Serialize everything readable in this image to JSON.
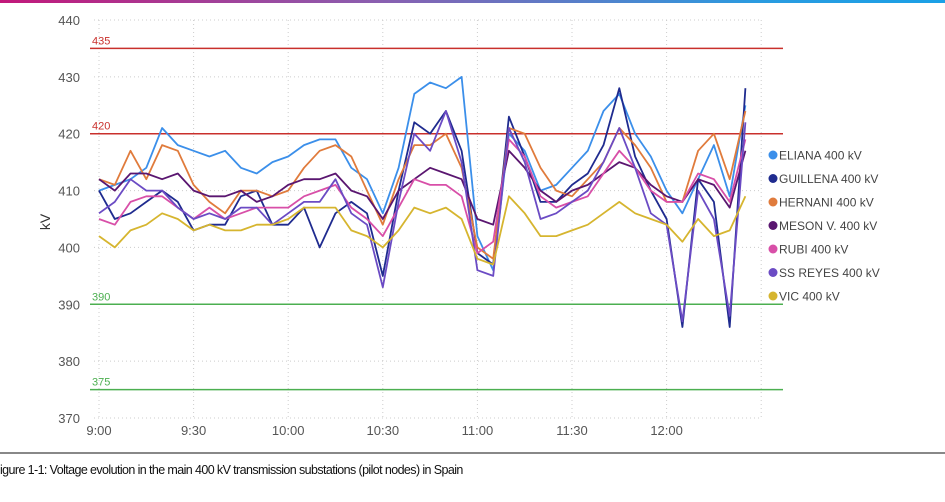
{
  "chart_data": {
    "type": "line",
    "xlabel": "",
    "ylabel": "kV",
    "ylim": [
      370,
      440
    ],
    "yticks": [
      370,
      380,
      390,
      400,
      410,
      420,
      430,
      440
    ],
    "xticks": [
      "9:00",
      "9:30",
      "10:00",
      "10:30",
      "11:00",
      "11:30",
      "12:00"
    ],
    "grid": true,
    "legend_position": "right",
    "x": [
      "9:00",
      "9:05",
      "9:10",
      "9:15",
      "9:20",
      "9:25",
      "9:30",
      "9:35",
      "9:40",
      "9:45",
      "9:50",
      "9:55",
      "10:00",
      "10:05",
      "10:10",
      "10:15",
      "10:20",
      "10:25",
      "10:30",
      "10:35",
      "10:40",
      "10:45",
      "10:50",
      "10:55",
      "11:00",
      "11:05",
      "11:10",
      "11:15",
      "11:20",
      "11:25",
      "11:30",
      "11:35",
      "11:40",
      "11:45",
      "11:50",
      "11:55",
      "12:00",
      "12:05",
      "12:10",
      "12:15",
      "12:20",
      "12:25"
    ],
    "thresholds": [
      {
        "label": "435",
        "value": 435,
        "color": "#c9302c"
      },
      {
        "label": "420",
        "value": 420,
        "color": "#c9302c"
      },
      {
        "label": "390",
        "value": 390,
        "color": "#4caf50"
      },
      {
        "label": "375",
        "value": 375,
        "color": "#4caf50"
      }
    ],
    "series": [
      {
        "name": "ELIANA 400 kV",
        "color": "#3b8fea",
        "values": [
          410,
          411,
          412,
          414,
          421,
          418,
          417,
          416,
          417,
          414,
          413,
          415,
          416,
          418,
          419,
          419,
          414,
          412,
          406,
          414,
          427,
          429,
          428,
          430,
          402,
          396,
          420,
          417,
          410,
          411,
          414,
          417,
          424,
          427,
          420,
          416,
          410,
          406,
          412,
          418,
          409,
          425
        ]
      },
      {
        "name": "GUILLENA 400 kV",
        "color": "#1f2b8f",
        "values": [
          410,
          405,
          406,
          408,
          410,
          408,
          403,
          404,
          404,
          409,
          410,
          404,
          404,
          407,
          400,
          406,
          408,
          406,
          395,
          410,
          422,
          420,
          424,
          417,
          399,
          397,
          423,
          416,
          408,
          408,
          411,
          413,
          418,
          428,
          416,
          410,
          405,
          386,
          412,
          408,
          386,
          428
        ]
      },
      {
        "name": "HERNANI 400 kV",
        "color": "#e07b3c",
        "values": [
          412,
          411,
          417,
          412,
          418,
          417,
          411,
          408,
          406,
          410,
          410,
          409,
          410,
          414,
          417,
          418,
          416,
          410,
          404,
          412,
          418,
          418,
          420,
          414,
          400,
          398,
          421,
          420,
          414,
          410,
          409,
          412,
          415,
          421,
          418,
          414,
          408,
          408,
          417,
          420,
          412,
          424
        ]
      },
      {
        "name": "MESON V. 400 kV",
        "color": "#5a1670",
        "values": [
          412,
          410,
          413,
          413,
          412,
          413,
          410,
          409,
          409,
          410,
          408,
          409,
          411,
          412,
          412,
          413,
          410,
          409,
          405,
          410,
          412,
          414,
          413,
          412,
          405,
          404,
          417,
          414,
          410,
          408,
          410,
          411,
          413,
          415,
          414,
          411,
          409,
          408,
          412,
          411,
          407,
          417
        ]
      },
      {
        "name": "RUBI 400 kV",
        "color": "#d84fa8",
        "values": [
          405,
          404,
          408,
          409,
          409,
          407,
          405,
          407,
          405,
          406,
          407,
          407,
          407,
          409,
          410,
          411,
          407,
          405,
          402,
          407,
          412,
          411,
          411,
          409,
          399,
          401,
          419,
          416,
          409,
          407,
          408,
          409,
          413,
          417,
          414,
          410,
          408,
          408,
          413,
          412,
          408,
          419
        ]
      },
      {
        "name": "SS REYES 400 kV",
        "color": "#6b4bc4",
        "values": [
          406,
          408,
          412,
          410,
          410,
          407,
          405,
          406,
          405,
          407,
          407,
          404,
          406,
          408,
          408,
          412,
          406,
          404,
          393,
          408,
          420,
          417,
          424,
          415,
          396,
          395,
          421,
          415,
          405,
          406,
          408,
          410,
          415,
          421,
          414,
          406,
          404,
          387,
          410,
          405,
          388,
          422
        ]
      },
      {
        "name": "VIC 400 kV",
        "color": "#d6b52f",
        "values": [
          402,
          400,
          403,
          404,
          406,
          405,
          403,
          404,
          403,
          403,
          404,
          404,
          405,
          407,
          407,
          407,
          403,
          402,
          400,
          403,
          407,
          406,
          407,
          405,
          398,
          397,
          409,
          406,
          402,
          402,
          403,
          404,
          406,
          408,
          406,
          405,
          404,
          401,
          405,
          402,
          403,
          409
        ]
      }
    ]
  },
  "caption": "igure 1-1: Voltage evolution in the main 400 kV transmission substations (pilot nodes) in Spain"
}
